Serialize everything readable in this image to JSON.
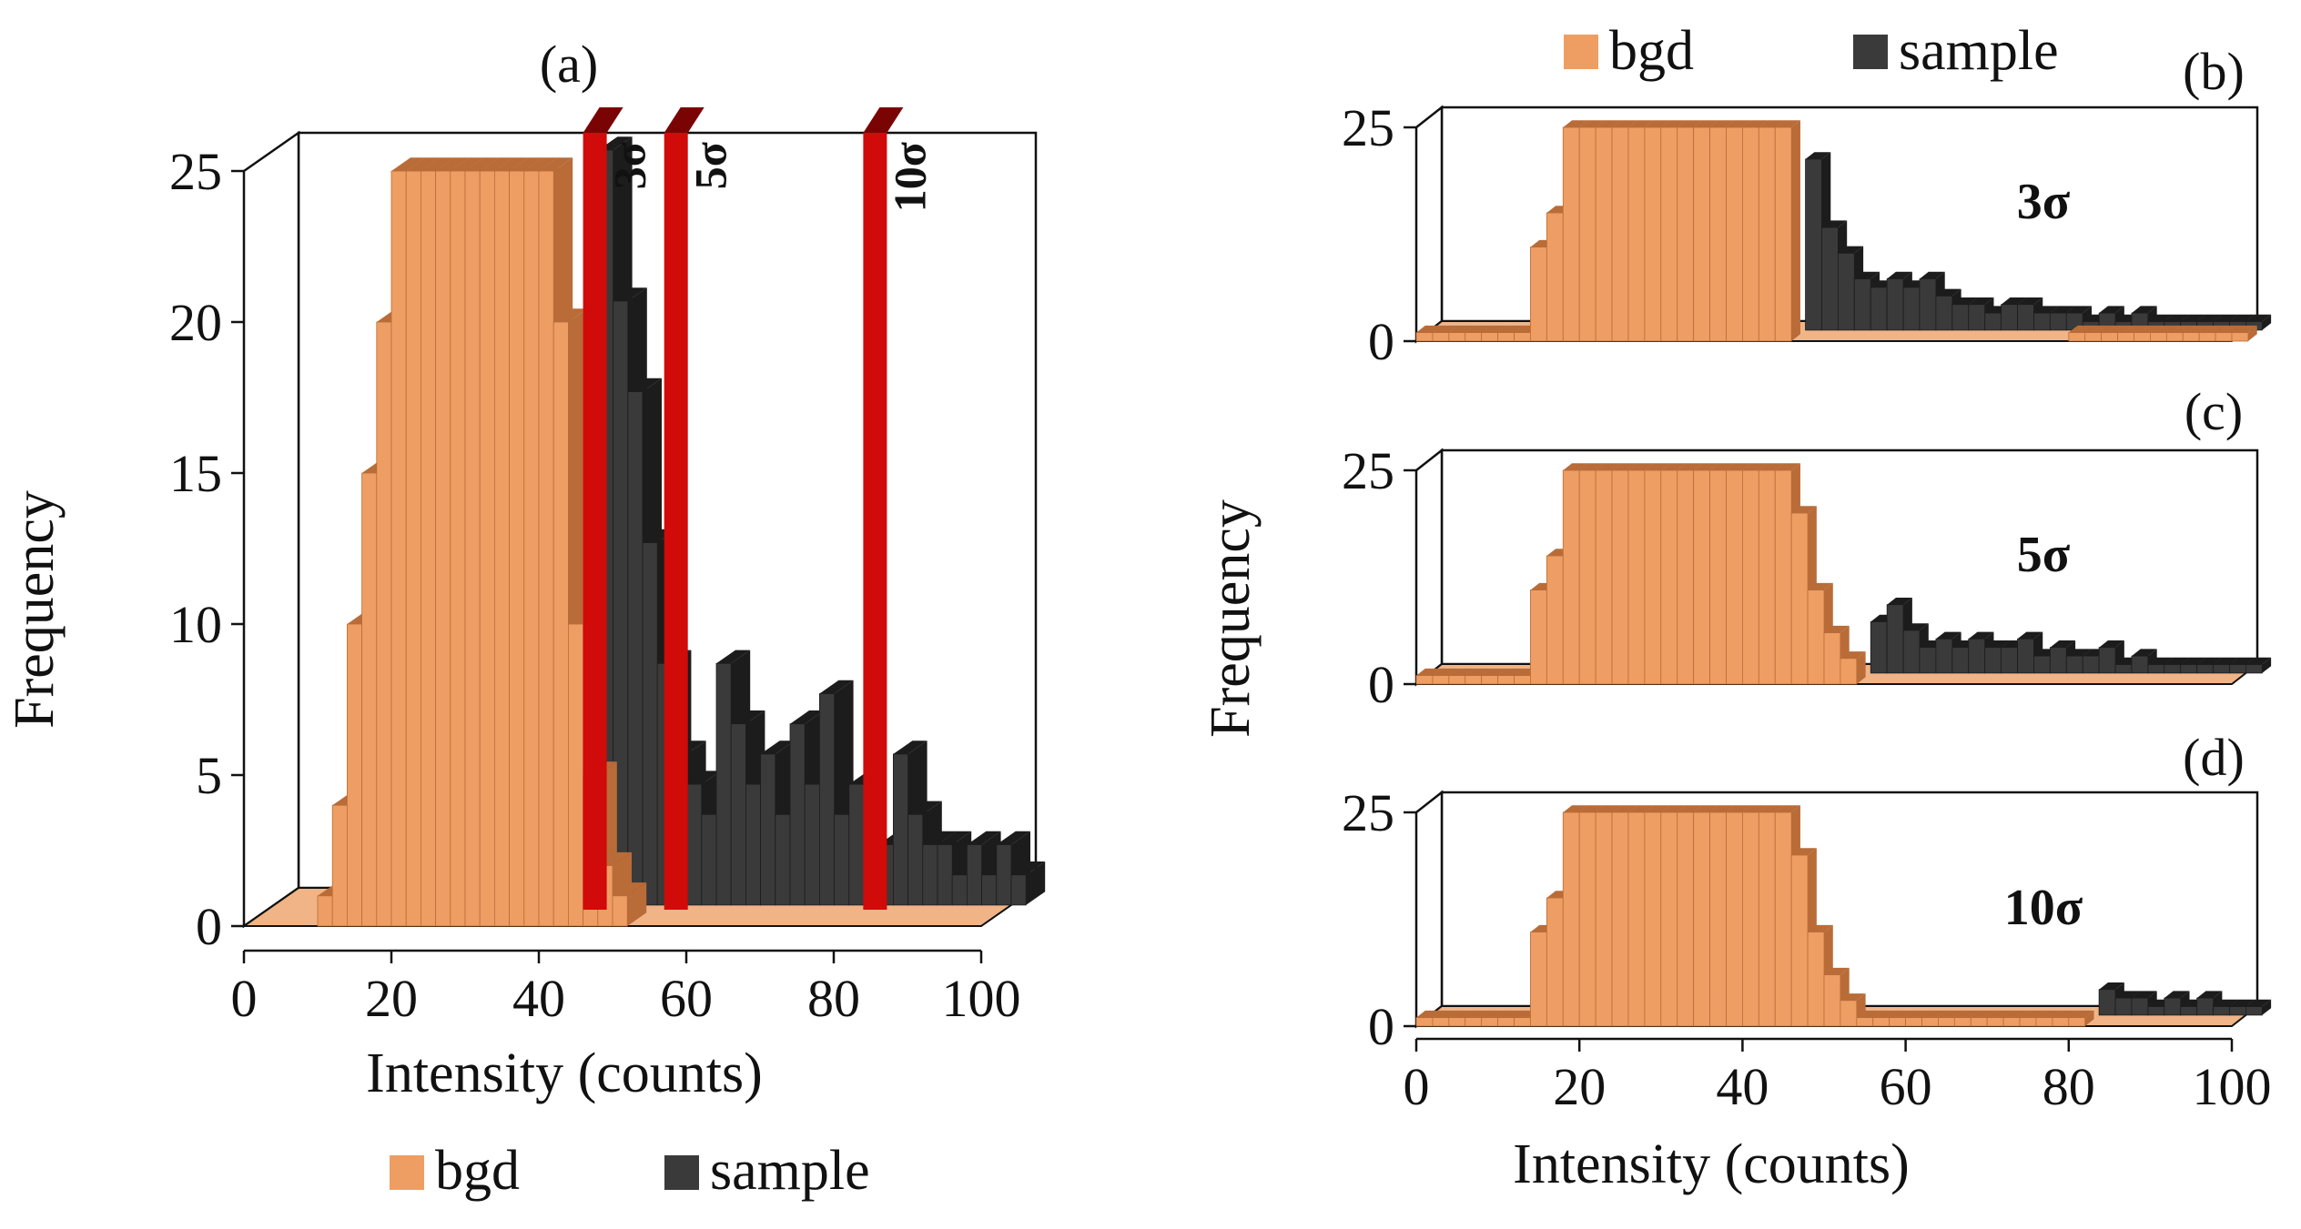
{
  "colors": {
    "bgd": "#ee9e63",
    "bgd_dark": "#b96c38",
    "sample": "#3a3a3a",
    "sample_dark": "#1c1c1c",
    "threshold": "#d10a0a",
    "threshold_dark": "#7a0404",
    "floor": "#f0b487"
  },
  "chart_data": [
    {
      "panel": "(a)",
      "type": "bar",
      "style": "3d-histogram",
      "xlabel": "Intensity (counts)",
      "ylabel": "Frequency",
      "xlim": [
        0,
        100
      ],
      "ylim": [
        0,
        25
      ],
      "xticks": [
        "0",
        "20",
        "40",
        "60",
        "80",
        "100"
      ],
      "yticks": [
        "0",
        "5",
        "10",
        "15",
        "20",
        "25"
      ],
      "series": [
        {
          "name": "bgd",
          "x": [
            10,
            12,
            14,
            16,
            18,
            20,
            22,
            24,
            26,
            28,
            30,
            32,
            34,
            36,
            38,
            40,
            42,
            44,
            46,
            48,
            50
          ],
          "values": [
            1,
            4,
            10,
            15,
            20,
            25,
            25,
            25,
            25,
            25,
            25,
            25,
            25,
            25,
            25,
            25,
            20,
            10,
            5,
            2,
            1
          ]
        },
        {
          "name": "sample",
          "x": [
            44,
            46,
            48,
            50,
            52,
            54,
            56,
            58,
            60,
            62,
            64,
            66,
            68,
            70,
            72,
            74,
            76,
            78,
            80,
            82,
            84,
            86,
            88,
            90,
            92,
            94,
            96,
            98,
            100
          ],
          "values": [
            25,
            20,
            17,
            12,
            8,
            5,
            4,
            3,
            8,
            6,
            4,
            5,
            3,
            6,
            4,
            7,
            3,
            4,
            1,
            2,
            5,
            3,
            2,
            2,
            1,
            2,
            1,
            2,
            1
          ]
        }
      ],
      "thresholds": [
        {
          "label": "3σ",
          "x": 46
        },
        {
          "label": "5σ",
          "x": 57
        },
        {
          "label": "10σ",
          "x": 84
        }
      ],
      "legend": {
        "position": "bottom",
        "entries": [
          "bgd",
          "sample"
        ]
      }
    },
    {
      "panel": "(b)",
      "type": "bar",
      "style": "3d-histogram",
      "annotation": "3σ",
      "ylabel": "Frequency",
      "xlim": [
        0,
        100
      ],
      "ylim": [
        0,
        25
      ],
      "yticks": [
        "0",
        "25"
      ],
      "series": [
        {
          "name": "bgd",
          "x": [
            0,
            2,
            4,
            6,
            8,
            10,
            12,
            14,
            16,
            18,
            20,
            22,
            24,
            26,
            28,
            30,
            32,
            34,
            36,
            38,
            40,
            42,
            44,
            80,
            82,
            84,
            86,
            88,
            90,
            92,
            94,
            96,
            98,
            100
          ],
          "values": [
            1,
            1,
            1,
            1,
            1,
            1,
            1,
            11,
            15,
            25,
            25,
            25,
            25,
            25,
            25,
            25,
            25,
            25,
            25,
            25,
            25,
            25,
            25,
            1,
            1,
            1,
            1,
            1,
            1,
            1,
            1,
            1,
            1,
            1
          ]
        },
        {
          "name": "sample",
          "x": [
            46,
            48,
            50,
            52,
            54,
            56,
            58,
            60,
            62,
            64,
            66,
            68,
            70,
            72,
            74,
            76,
            78,
            80,
            82,
            84,
            86,
            88,
            90,
            92,
            94,
            96,
            98,
            100
          ],
          "values": [
            20,
            12,
            9,
            6,
            5,
            6,
            5,
            6,
            4,
            3,
            3,
            2,
            3,
            3,
            2,
            2,
            2,
            1,
            2,
            1,
            2,
            1,
            1,
            1,
            1,
            1,
            1,
            1
          ]
        }
      ],
      "legend": {
        "position": "top",
        "entries": [
          "bgd",
          "sample"
        ]
      }
    },
    {
      "panel": "(c)",
      "type": "bar",
      "style": "3d-histogram",
      "annotation": "5σ",
      "ylabel": "Frequency",
      "xlim": [
        0,
        100
      ],
      "ylim": [
        0,
        25
      ],
      "yticks": [
        "0",
        "25"
      ],
      "series": [
        {
          "name": "bgd",
          "x": [
            0,
            2,
            4,
            6,
            8,
            10,
            12,
            14,
            16,
            18,
            20,
            22,
            24,
            26,
            28,
            30,
            32,
            34,
            36,
            38,
            40,
            42,
            44,
            46,
            48,
            50,
            52
          ],
          "values": [
            1,
            1,
            1,
            1,
            1,
            1,
            1,
            11,
            15,
            25,
            25,
            25,
            25,
            25,
            25,
            25,
            25,
            25,
            25,
            25,
            25,
            25,
            25,
            20,
            11,
            6,
            3
          ]
        },
        {
          "name": "sample",
          "x": [
            54,
            56,
            58,
            60,
            62,
            64,
            66,
            68,
            70,
            72,
            74,
            76,
            78,
            80,
            82,
            84,
            86,
            88,
            90,
            92,
            94,
            96,
            98,
            100
          ],
          "values": [
            6,
            8,
            5,
            3,
            4,
            3,
            4,
            3,
            3,
            4,
            2,
            3,
            2,
            2,
            3,
            1,
            2,
            1,
            1,
            1,
            1,
            1,
            1,
            1
          ]
        }
      ]
    },
    {
      "panel": "(d)",
      "type": "bar",
      "style": "3d-histogram",
      "annotation": "10σ",
      "xlabel": "Intensity (counts)",
      "xlim": [
        0,
        100
      ],
      "ylim": [
        0,
        25
      ],
      "xticks": [
        "0",
        "20",
        "40",
        "60",
        "80",
        "100"
      ],
      "yticks": [
        "0",
        "25"
      ],
      "series": [
        {
          "name": "bgd",
          "x": [
            0,
            2,
            4,
            6,
            8,
            10,
            12,
            14,
            16,
            18,
            20,
            22,
            24,
            26,
            28,
            30,
            32,
            34,
            36,
            38,
            40,
            42,
            44,
            46,
            48,
            50,
            52,
            54,
            56,
            58,
            60,
            62,
            64,
            66,
            68,
            70,
            72,
            74,
            76,
            78,
            80
          ],
          "values": [
            1,
            1,
            1,
            1,
            1,
            1,
            1,
            11,
            15,
            25,
            25,
            25,
            25,
            25,
            25,
            25,
            25,
            25,
            25,
            25,
            25,
            25,
            25,
            20,
            11,
            6,
            3,
            1,
            1,
            1,
            1,
            1,
            1,
            1,
            1,
            1,
            1,
            1,
            1,
            1,
            1
          ]
        },
        {
          "name": "sample",
          "x": [
            82,
            84,
            86,
            88,
            90,
            92,
            94,
            96,
            98,
            100
          ],
          "values": [
            3,
            2,
            2,
            1,
            2,
            1,
            2,
            1,
            1,
            1
          ]
        }
      ]
    }
  ]
}
